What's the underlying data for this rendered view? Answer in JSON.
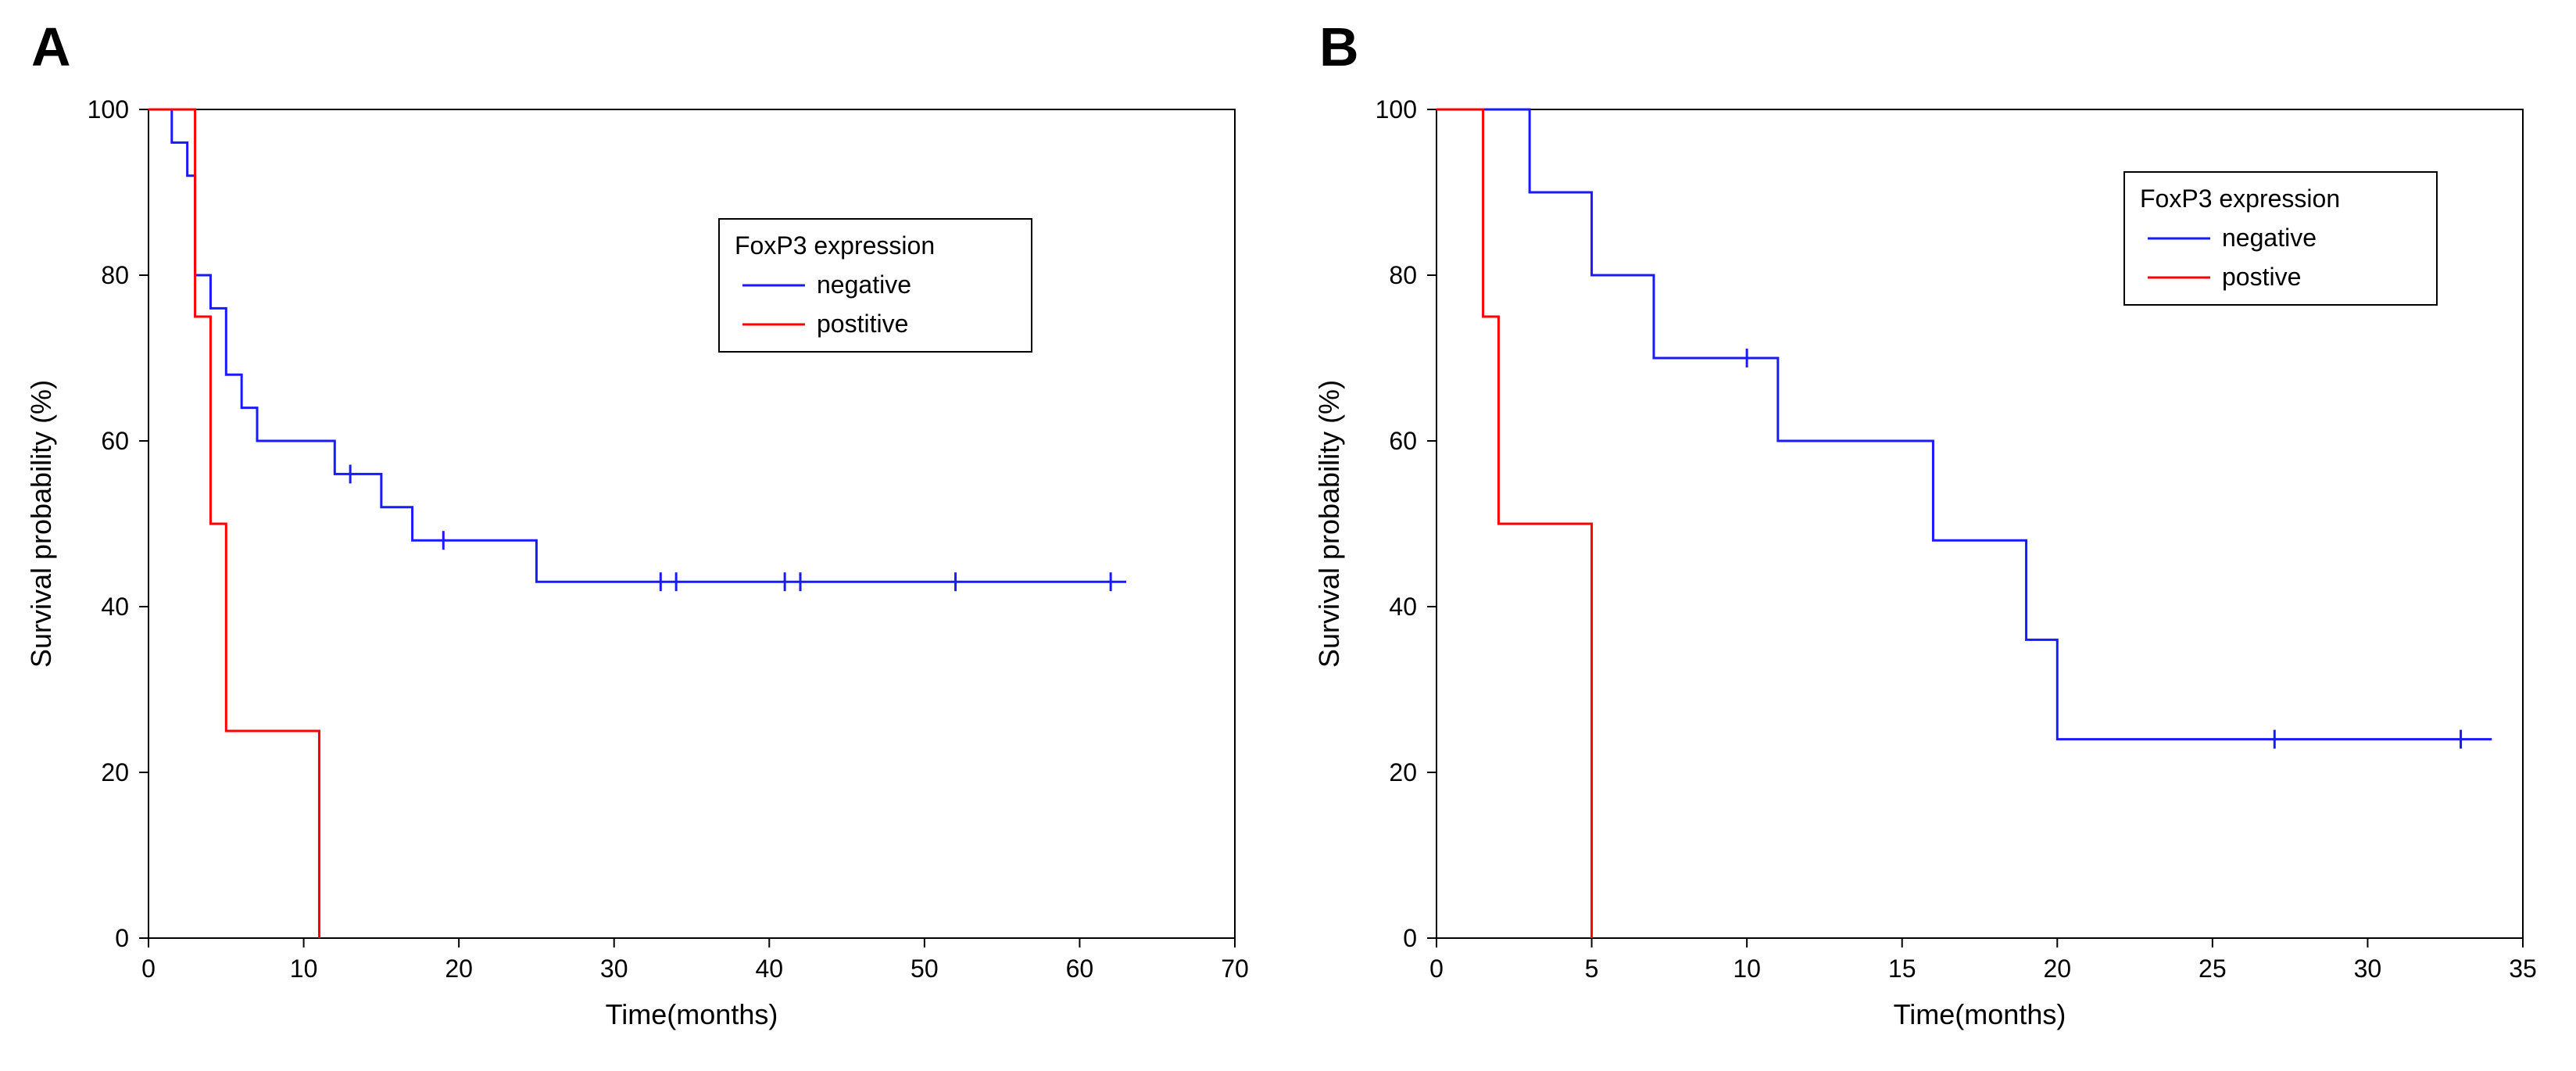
{
  "panelA": {
    "label": "A",
    "type": "kaplan-meier-survival",
    "ylabel": "Survival probability (%)",
    "xlabel": "Time(months)",
    "label_fontsize": 36,
    "tick_fontsize": 32,
    "panel_label_fontsize": 70,
    "xlim": [
      0,
      70
    ],
    "ylim": [
      0,
      100
    ],
    "xtick_step": 10,
    "ytick_step": 20,
    "background_color": "#ffffff",
    "axis_color": "#000000",
    "border_color": "#000000",
    "legend": {
      "title": "FoxP3 expression",
      "items": [
        {
          "label": "negative",
          "color": "#1a1aff"
        },
        {
          "label": "postitive",
          "color": "#ff0000"
        }
      ],
      "title_fontsize": 32,
      "item_fontsize": 32,
      "position": "right-upper",
      "border_color": "#000000"
    },
    "series": [
      {
        "name": "negative",
        "color": "#1a1aff",
        "line_width": 3,
        "steps": [
          {
            "x": 0,
            "y": 100
          },
          {
            "x": 1.5,
            "y": 96
          },
          {
            "x": 2.5,
            "y": 92
          },
          {
            "x": 3,
            "y": 80
          },
          {
            "x": 4,
            "y": 76
          },
          {
            "x": 5,
            "y": 68
          },
          {
            "x": 6,
            "y": 64
          },
          {
            "x": 7,
            "y": 60
          },
          {
            "x": 12,
            "y": 56
          },
          {
            "x": 13,
            "y": 56
          },
          {
            "x": 15,
            "y": 52
          },
          {
            "x": 17,
            "y": 48
          },
          {
            "x": 19,
            "y": 48
          },
          {
            "x": 25,
            "y": 43
          },
          {
            "x": 63,
            "y": 43
          }
        ],
        "censor_marks": [
          13,
          19,
          33,
          34,
          41,
          42,
          52,
          62
        ]
      },
      {
        "name": "positive",
        "color": "#ff0000",
        "line_width": 3,
        "steps": [
          {
            "x": 0,
            "y": 100
          },
          {
            "x": 3,
            "y": 75
          },
          {
            "x": 4,
            "y": 50
          },
          {
            "x": 5,
            "y": 25
          },
          {
            "x": 11,
            "y": 0
          }
        ],
        "censor_marks": []
      }
    ]
  },
  "panelB": {
    "label": "B",
    "type": "kaplan-meier-survival",
    "ylabel": "Survival probability (%)",
    "xlabel": "Time(months)",
    "label_fontsize": 36,
    "tick_fontsize": 32,
    "panel_label_fontsize": 70,
    "xlim": [
      0,
      35
    ],
    "ylim": [
      0,
      100
    ],
    "xtick_step": 5,
    "ytick_step": 20,
    "background_color": "#ffffff",
    "axis_color": "#000000",
    "border_color": "#000000",
    "legend": {
      "title": "FoxP3 expression",
      "items": [
        {
          "label": "negative",
          "color": "#1a1aff"
        },
        {
          "label": "postive",
          "color": "#ff0000"
        }
      ],
      "title_fontsize": 32,
      "item_fontsize": 32,
      "position": "right-upper",
      "border_color": "#000000"
    },
    "series": [
      {
        "name": "negative",
        "color": "#1a1aff",
        "line_width": 3,
        "steps": [
          {
            "x": 0,
            "y": 100
          },
          {
            "x": 3,
            "y": 90
          },
          {
            "x": 5,
            "y": 80
          },
          {
            "x": 7,
            "y": 70
          },
          {
            "x": 10,
            "y": 70
          },
          {
            "x": 11,
            "y": 60
          },
          {
            "x": 15,
            "y": 60
          },
          {
            "x": 16,
            "y": 48
          },
          {
            "x": 19,
            "y": 36
          },
          {
            "x": 20,
            "y": 24
          },
          {
            "x": 34,
            "y": 24
          }
        ],
        "censor_marks": [
          10,
          27,
          33
        ]
      },
      {
        "name": "positive",
        "color": "#ff0000",
        "line_width": 3,
        "steps": [
          {
            "x": 0,
            "y": 100
          },
          {
            "x": 1.5,
            "y": 75
          },
          {
            "x": 2,
            "y": 50
          },
          {
            "x": 5,
            "y": 0
          }
        ],
        "censor_marks": []
      }
    ]
  }
}
